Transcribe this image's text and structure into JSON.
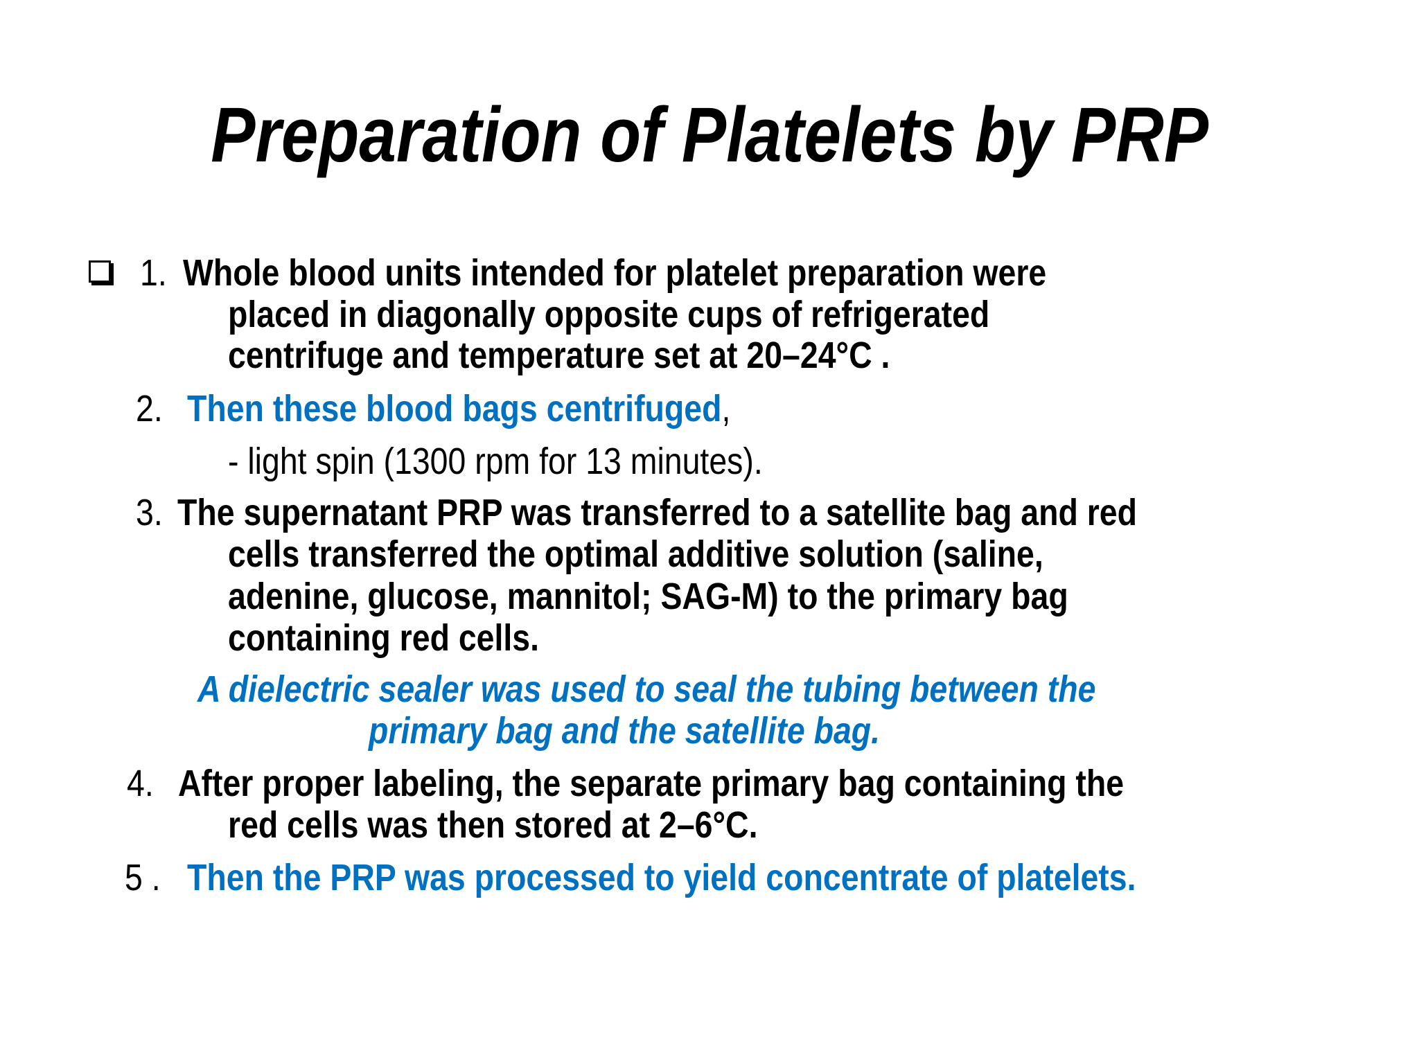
{
  "title": "Preparation of Platelets by PRP",
  "bullet_icon": "checkbox-square-icon",
  "colors": {
    "text": "#000000",
    "accent": "#0070C0"
  },
  "steps": [
    {
      "number": "1.",
      "lines": [
        "Whole blood units intended for platelet preparation were",
        "placed in diagonally opposite cups of refrigerated",
        "centrifuge and temperature set at 20–24°C ."
      ]
    },
    {
      "number": "2.",
      "highlight": "Then these blood bags centrifuged",
      "suffix": ",",
      "sub": "- light spin (1300 rpm for 13 minutes)."
    },
    {
      "number": "3.",
      "lines": [
        "The supernatant PRP was transferred to a satellite bag and red",
        "cells transferred the optimal additive solution (saline,",
        "adenine, glucose, mannitol; SAG-M) to the primary bag",
        "containing red cells."
      ]
    },
    {
      "note": [
        "A dielectric sealer was used to seal the tubing between the",
        "primary bag and the satellite bag."
      ]
    },
    {
      "number": "4.",
      "lines": [
        "After proper labeling, the separate primary bag containing the",
        "red cells was then stored at 2–6°C."
      ]
    },
    {
      "number": "5 .",
      "highlight": "Then the PRP was processed to yield concentrate of platelets."
    }
  ]
}
